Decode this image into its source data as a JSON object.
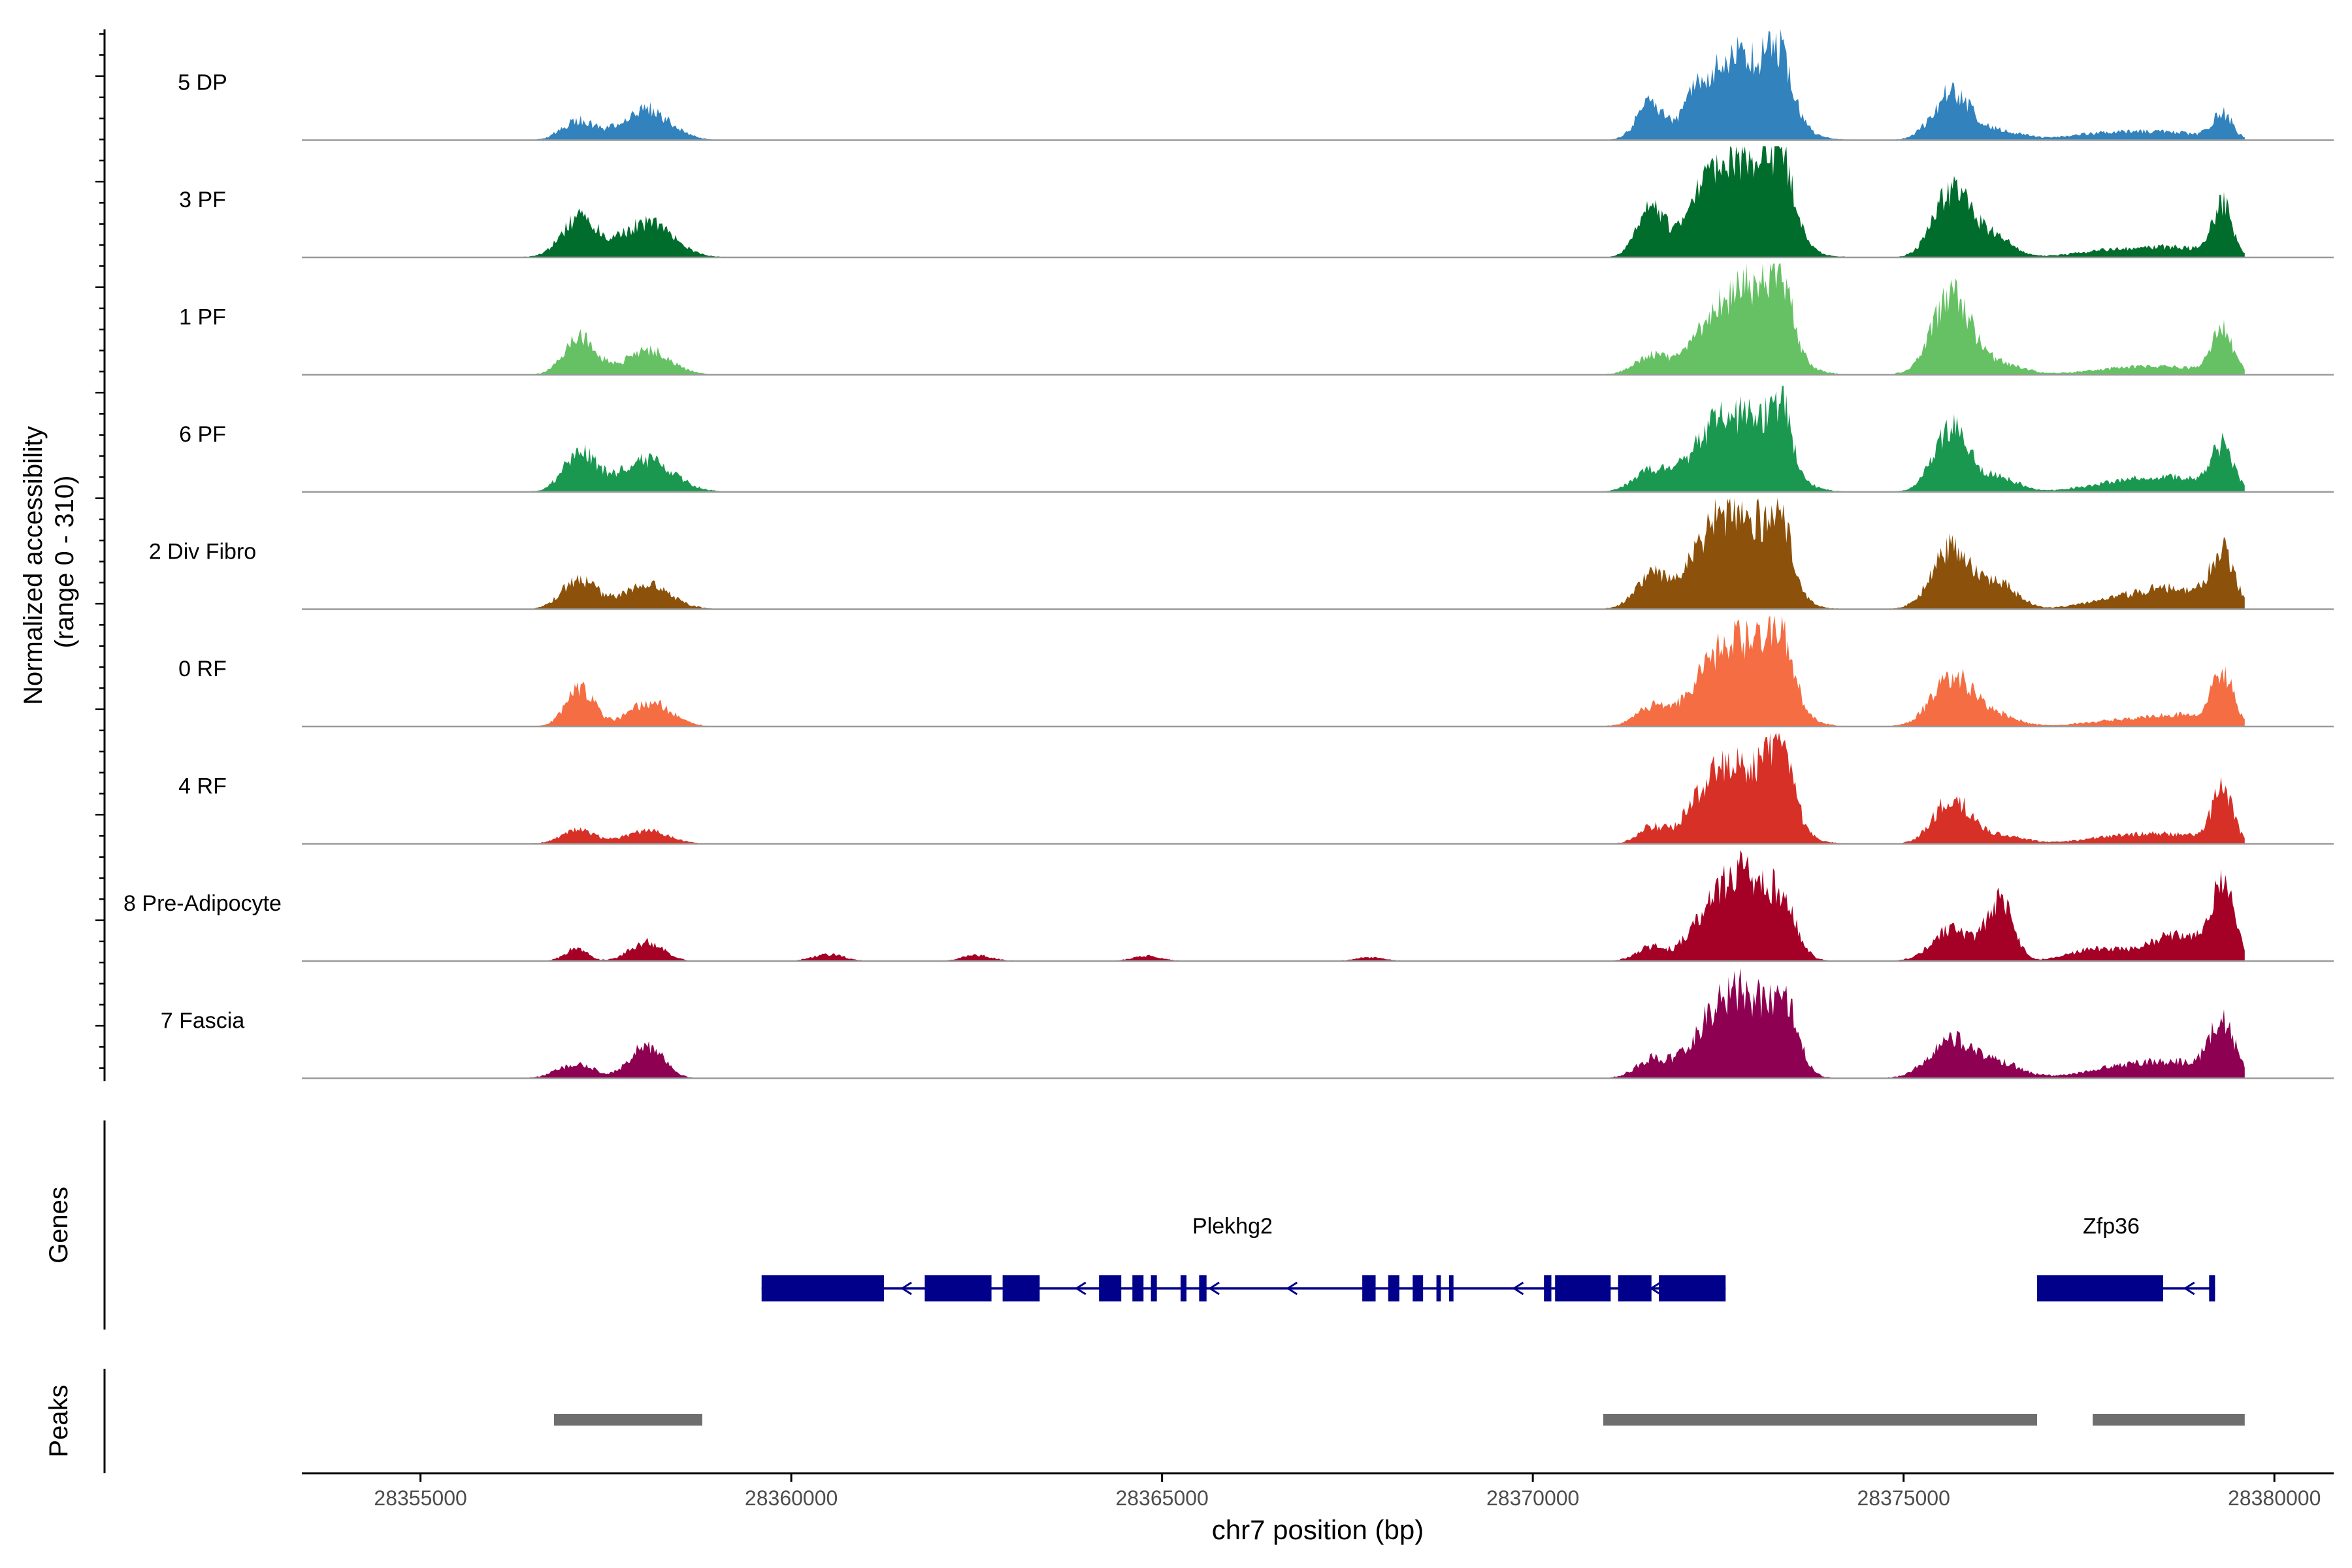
{
  "chart_data": {
    "type": "area",
    "title": "",
    "ylabel_line1": "Normalized accessibility",
    "ylabel_line2": "(range 0 - 310)",
    "xlabel": "chr7 position (bp)",
    "xlim": [
      28353400,
      28380800
    ],
    "ylim": [
      0,
      310
    ],
    "region_start": 28353400,
    "region_end": 28379600,
    "x_ticks": [
      28355000,
      28360000,
      28365000,
      28370000,
      28375000,
      28380000
    ],
    "x_tick_labels": [
      "28355000",
      "28360000",
      "28365000",
      "28370000",
      "28375000",
      "28380000"
    ],
    "genes_label": "Genes",
    "peaks_label": "Peaks",
    "series": [
      {
        "name": "5 DP",
        "color": "#3182bd",
        "peaks": [
          [
            28357130,
            55,
            220
          ],
          [
            28358030,
            90,
            320
          ],
          [
            28371580,
            105,
            180
          ],
          [
            28372250,
            85,
            200
          ],
          [
            28372850,
            250,
            420
          ],
          [
            28373350,
            140,
            160
          ],
          [
            28375650,
            135,
            250
          ],
          [
            28376300,
            25,
            300
          ],
          [
            28377700,
            18,
            500
          ],
          [
            28378600,
            20,
            500
          ],
          [
            28379300,
            70,
            130
          ]
        ]
      },
      {
        "name": "3 PF",
        "color": "#006d2c",
        "peaks": [
          [
            28357140,
            110,
            240
          ],
          [
            28358060,
            100,
            340
          ],
          [
            28371600,
            135,
            190
          ],
          [
            28372250,
            100,
            220
          ],
          [
            28372850,
            265,
            420
          ],
          [
            28373350,
            170,
            160
          ],
          [
            28375650,
            190,
            240
          ],
          [
            28376200,
            60,
            250
          ],
          [
            28377800,
            18,
            500
          ],
          [
            28378700,
            25,
            500
          ],
          [
            28379300,
            140,
            130
          ]
        ]
      },
      {
        "name": "1 PF",
        "color": "#66c164",
        "peaks": [
          [
            28357160,
            110,
            210
          ],
          [
            28358070,
            70,
            300
          ],
          [
            28371600,
            55,
            220
          ],
          [
            28372300,
            60,
            250
          ],
          [
            28372900,
            250,
            400
          ],
          [
            28373350,
            170,
            150
          ],
          [
            28375650,
            225,
            260
          ],
          [
            28376300,
            30,
            300
          ],
          [
            28377900,
            14,
            500
          ],
          [
            28378700,
            18,
            500
          ],
          [
            28379300,
            120,
            140
          ]
        ]
      },
      {
        "name": "6 PF",
        "color": "#1a9850",
        "peaks": [
          [
            28357150,
            110,
            220
          ],
          [
            28358050,
            90,
            360
          ],
          [
            28371600,
            60,
            240
          ],
          [
            28372300,
            80,
            260
          ],
          [
            28372850,
            210,
            420
          ],
          [
            28373350,
            160,
            150
          ],
          [
            28375650,
            180,
            240
          ],
          [
            28376300,
            40,
            250
          ],
          [
            28377900,
            22,
            500
          ],
          [
            28378700,
            35,
            500
          ],
          [
            28379300,
            120,
            140
          ]
        ]
      },
      {
        "name": "2 Div Fibro",
        "color": "#8c510a",
        "peaks": [
          [
            28357140,
            85,
            230
          ],
          [
            28358050,
            70,
            320
          ],
          [
            28371600,
            95,
            220
          ],
          [
            28372250,
            90,
            250
          ],
          [
            28372800,
            275,
            400
          ],
          [
            28373350,
            160,
            160
          ],
          [
            28375650,
            175,
            260
          ],
          [
            28376300,
            70,
            240
          ],
          [
            28377900,
            22,
            500
          ],
          [
            28378700,
            55,
            500
          ],
          [
            28379300,
            145,
            150
          ]
        ]
      },
      {
        "name": "0 RF",
        "color": "#f46d43",
        "peaks": [
          [
            28357150,
            110,
            190
          ],
          [
            28358100,
            70,
            280
          ],
          [
            28371600,
            55,
            220
          ],
          [
            28372300,
            65,
            260
          ],
          [
            28372850,
            240,
            420
          ],
          [
            28373350,
            150,
            170
          ],
          [
            28375650,
            140,
            270
          ],
          [
            28376200,
            35,
            300
          ],
          [
            28377900,
            14,
            500
          ],
          [
            28378800,
            30,
            500
          ],
          [
            28379300,
            140,
            140
          ]
        ]
      },
      {
        "name": "4 RF",
        "color": "#d73027",
        "peaks": [
          [
            28357130,
            40,
            220
          ],
          [
            28358050,
            35,
            300
          ],
          [
            28371600,
            45,
            180
          ],
          [
            28372300,
            80,
            260
          ],
          [
            28372850,
            215,
            420
          ],
          [
            28373350,
            170,
            170
          ],
          [
            28375650,
            130,
            240
          ],
          [
            28376300,
            25,
            300
          ],
          [
            28377900,
            18,
            500
          ],
          [
            28378700,
            22,
            500
          ],
          [
            28379300,
            145,
            140
          ]
        ]
      },
      {
        "name": "8 Pre-Adipocyte",
        "color": "#a50026",
        "peaks": [
          [
            28357100,
            35,
            150
          ],
          [
            28358050,
            55,
            220
          ],
          [
            28371600,
            40,
            200
          ],
          [
            28372250,
            80,
            220
          ],
          [
            28372800,
            260,
            300
          ],
          [
            28373350,
            150,
            200
          ],
          [
            28375650,
            90,
            260
          ],
          [
            28376300,
            165,
            180
          ],
          [
            28377600,
            35,
            350
          ],
          [
            28378700,
            75,
            400
          ],
          [
            28379300,
            210,
            150
          ],
          [
            28360500,
            20,
            200
          ],
          [
            28362500,
            16,
            200
          ],
          [
            28364800,
            14,
            200
          ],
          [
            28367800,
            10,
            200
          ]
        ]
      },
      {
        "name": "7 Fascia",
        "color": "#8e0152",
        "peaks": [
          [
            28357100,
            40,
            250
          ],
          [
            28358050,
            95,
            220
          ],
          [
            28371600,
            50,
            220
          ],
          [
            28372400,
            120,
            330
          ],
          [
            28372900,
            205,
            350
          ],
          [
            28373400,
            160,
            180
          ],
          [
            28375650,
            110,
            300
          ],
          [
            28376300,
            40,
            300
          ],
          [
            28377900,
            26,
            500
          ],
          [
            28378700,
            40,
            500
          ],
          [
            28379300,
            145,
            170
          ]
        ]
      }
    ],
    "genes": [
      {
        "name": "Plekhg2",
        "label_x": 28365950,
        "start": 28359600,
        "end": 28372600,
        "exons": [
          [
            28359600,
            28361250,
            1
          ],
          [
            28361800,
            28362700,
            1
          ],
          [
            28362850,
            28363350,
            1
          ],
          [
            28364150,
            28364450,
            1
          ],
          [
            28364600,
            28364750,
            1
          ],
          [
            28364850,
            28364930,
            1
          ],
          [
            28365250,
            28365330,
            1
          ],
          [
            28365500,
            28365600,
            1
          ],
          [
            28367700,
            28367880,
            1
          ],
          [
            28368050,
            28368200,
            1
          ],
          [
            28368380,
            28368520,
            1
          ],
          [
            28368700,
            28368760,
            1
          ],
          [
            28368870,
            28368930,
            1
          ],
          [
            28370150,
            28370250,
            1
          ],
          [
            28370300,
            28371050,
            1
          ],
          [
            28371150,
            28371600,
            1
          ],
          [
            28371700,
            28372600,
            1
          ]
        ],
        "arrows": [
          28361550,
          28363900,
          28365700,
          28366750,
          28369800,
          28371650
        ]
      },
      {
        "name": "Zfp36",
        "label_x": 28377800,
        "start": 28376800,
        "end": 28379200,
        "exons": [
          [
            28376800,
            28378500,
            1
          ],
          [
            28379120,
            28379200,
            1
          ]
        ],
        "arrows": [
          28378850
        ]
      }
    ],
    "peak_regions": [
      [
        28356800,
        28358800
      ],
      [
        28370950,
        28376800
      ],
      [
        28377550,
        28379600
      ]
    ]
  }
}
